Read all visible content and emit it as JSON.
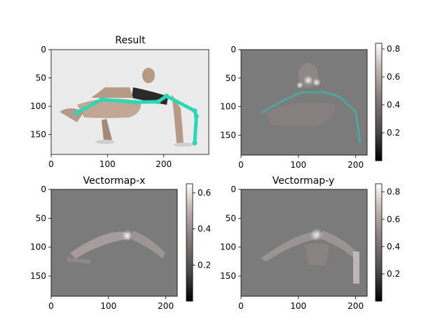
{
  "chart_data": [
    {
      "type": "image",
      "title": "Result",
      "content": "photo of person in arm-balance pose with pose skeleton overlay",
      "xlim": [
        0,
        280
      ],
      "ylim": [
        185,
        0
      ],
      "xticks": [
        0,
        100,
        200
      ],
      "yticks": [
        0,
        50,
        100,
        150
      ],
      "overlay_color": "#2fd6b4",
      "skeleton_points": [
        [
          45,
          112
        ],
        [
          90,
          88
        ],
        [
          150,
          93
        ],
        [
          190,
          92
        ],
        [
          205,
          82
        ],
        [
          255,
          108
        ],
        [
          258,
          118
        ],
        [
          255,
          165
        ]
      ],
      "colorbar": null
    },
    {
      "type": "heatmap",
      "title": "",
      "content": "heatmap overlay of pose keypoints",
      "xlim": [
        0,
        220
      ],
      "ylim": [
        185,
        0
      ],
      "xticks": [
        0,
        100,
        200
      ],
      "yticks": [
        0,
        50,
        100,
        150
      ],
      "colorbar": {
        "ticks": [
          0.2,
          0.4,
          0.6,
          0.8
        ],
        "min": 0.0,
        "max": 0.84
      }
    },
    {
      "type": "heatmap",
      "title": "Vectormap-x",
      "xlim": [
        0,
        220
      ],
      "ylim": [
        185,
        0
      ],
      "xticks": [
        0,
        100,
        200
      ],
      "yticks": [
        0,
        50,
        100,
        150
      ],
      "colorbar": {
        "ticks": [
          0.2,
          0.4,
          0.6
        ],
        "min": 0.0,
        "max": 0.65
      }
    },
    {
      "type": "heatmap",
      "title": "Vectormap-y",
      "xlim": [
        0,
        220
      ],
      "ylim": [
        185,
        0
      ],
      "xticks": [
        0,
        100,
        200
      ],
      "yticks": [
        0,
        50,
        100,
        150
      ],
      "colorbar": {
        "ticks": [
          0.2,
          0.4,
          0.6,
          0.8
        ],
        "min": 0.0,
        "max": 0.86
      }
    }
  ]
}
